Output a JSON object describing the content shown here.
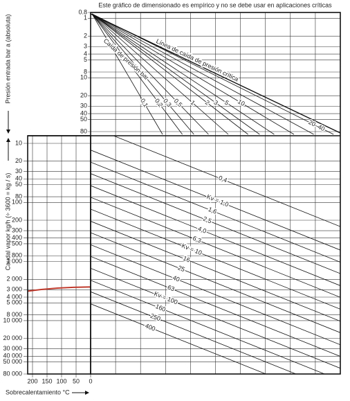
{
  "chart_data": {
    "type": "nomogram",
    "title": "Este gráfico de dimensionado es empírico y no se debe usar en aplicaciones críticas",
    "log_scale": true,
    "pressure_axis": {
      "label": "Presión entrada bar a (absoluta)",
      "ylim": [
        0.8,
        80
      ],
      "yticks": [
        0.8,
        1,
        2,
        3,
        4,
        5,
        8,
        10,
        20,
        30,
        40,
        50,
        80
      ]
    },
    "flow_axis": {
      "label": "Caudal vapor kg/h (÷ 3600 = kg / s)",
      "ylim": [
        10,
        80000
      ],
      "yticks": [
        10,
        20,
        30,
        40,
        50,
        80,
        100,
        200,
        300,
        400,
        500,
        800,
        {
          "value": 1000,
          "label": "1 000"
        },
        {
          "value": 2000,
          "label": "2 000"
        },
        {
          "value": 3000,
          "label": "3 000"
        },
        {
          "value": 4000,
          "label": "4 000"
        },
        {
          "value": 5000,
          "label": "5 000"
        },
        {
          "value": 8000,
          "label": "8 000"
        },
        {
          "value": 10000,
          "label": "10 000"
        },
        {
          "value": 20000,
          "label": "20 000"
        },
        {
          "value": 30000,
          "label": "30 000"
        },
        {
          "value": 40000,
          "label": "40 000"
        },
        {
          "value": 50000,
          "label": "50 000"
        },
        {
          "value": 80000,
          "label": "80 000"
        }
      ]
    },
    "superheat_axis": {
      "label": "Sobrecalentamiento °C",
      "xlim": [
        200,
        0
      ],
      "xticks": [
        200,
        150,
        100,
        50,
        0
      ]
    },
    "critical_line_label": "Línea de caída de presión crítica",
    "pressure_drop": {
      "label": "Caída de presión bar",
      "values": [
        0.1,
        0.2,
        0.3,
        0.5,
        1,
        2,
        3,
        5,
        10
      ],
      "value_labels": [
        "0,1",
        "0,2",
        "0,3",
        "0,5",
        "1",
        "2",
        "3",
        "5",
        "10"
      ]
    },
    "pressure_drop_range": {
      "values": [
        20,
        40
      ],
      "label": "20–40"
    },
    "kv": {
      "values": [
        0.4,
        1,
        1.6,
        2.5,
        4,
        6.3,
        10,
        16,
        25,
        40,
        63,
        100,
        160,
        250,
        400
      ],
      "value_labels": [
        "0,4",
        "Kv = 1,0",
        "1,6",
        "2,5",
        "4,0",
        "6,3",
        "Kv = 10",
        "16",
        "25",
        "40",
        "63",
        "Kv = 100",
        "160",
        "250",
        "400"
      ]
    },
    "example": {
      "flow": 3000,
      "color": "#c0392b"
    }
  }
}
